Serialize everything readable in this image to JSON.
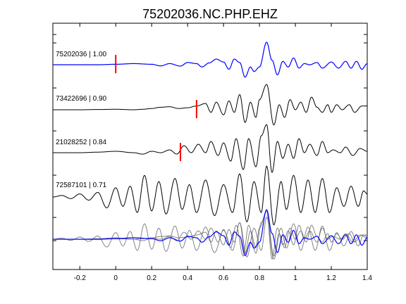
{
  "chart_data": {
    "type": "line",
    "title": "75202036.NC.PHP.EHZ",
    "xlim": [
      -0.35,
      1.4
    ],
    "x_ticks": [
      -0.2,
      0,
      0.2,
      0.4,
      0.6,
      0.8,
      1,
      1.2,
      1.4
    ],
    "x_tick_labels": [
      "-0.2",
      "0",
      "0.2",
      "0.4",
      "0.6",
      "0.8",
      "1",
      "1.2",
      "1.4"
    ],
    "colors": {
      "primary_trace": "#0000ff",
      "other_trace": "#000000",
      "pick": "#ff0000",
      "stack_other": "#777777"
    },
    "traces": [
      {
        "label": "75202036 | 1.00",
        "color": "#0000ff",
        "pick_x": 0.0,
        "waveform": [
          [
            -0.35,
            0
          ],
          [
            -0.2,
            0
          ],
          [
            -0.1,
            0
          ],
          [
            0,
            0.02
          ],
          [
            0.1,
            0.05
          ],
          [
            0.2,
            0.02
          ],
          [
            0.25,
            -0.05
          ],
          [
            0.3,
            0.05
          ],
          [
            0.36,
            -0.06
          ],
          [
            0.4,
            0.1
          ],
          [
            0.45,
            0.05
          ],
          [
            0.48,
            -0.1
          ],
          [
            0.52,
            0.08
          ],
          [
            0.56,
            0.25
          ],
          [
            0.6,
            0.12
          ],
          [
            0.63,
            -0.2
          ],
          [
            0.66,
            0.25
          ],
          [
            0.69,
            0.1
          ],
          [
            0.72,
            -0.55
          ],
          [
            0.75,
            -0.1
          ],
          [
            0.77,
            -0.3
          ],
          [
            0.8,
            -0.1
          ],
          [
            0.84,
            1.0
          ],
          [
            0.87,
            0.2
          ],
          [
            0.9,
            -0.45
          ],
          [
            0.93,
            0.15
          ],
          [
            0.96,
            -0.1
          ],
          [
            0.99,
            0.3
          ],
          [
            1.02,
            -0.15
          ],
          [
            1.05,
            0.05
          ],
          [
            1.08,
            0.0
          ],
          [
            1.12,
            0.1
          ],
          [
            1.15,
            -0.15
          ],
          [
            1.2,
            0.12
          ],
          [
            1.24,
            -0.15
          ],
          [
            1.28,
            0.15
          ],
          [
            1.31,
            -0.15
          ],
          [
            1.34,
            0.15
          ],
          [
            1.37,
            -0.2
          ],
          [
            1.4,
            0.05
          ]
        ]
      },
      {
        "label": "73422696 | 0.90",
        "color": "#000000",
        "pick_x": 0.45,
        "waveform": [
          [
            -0.35,
            0
          ],
          [
            -0.2,
            0
          ],
          [
            -0.1,
            0.01
          ],
          [
            0,
            0.02
          ],
          [
            0.1,
            0
          ],
          [
            0.15,
            0.02
          ],
          [
            0.2,
            0.05
          ],
          [
            0.25,
            0.1
          ],
          [
            0.3,
            0.12
          ],
          [
            0.35,
            0.05
          ],
          [
            0.4,
            0.08
          ],
          [
            0.45,
            0.15
          ],
          [
            0.5,
            0.25
          ],
          [
            0.53,
            -0.1
          ],
          [
            0.56,
            0.3
          ],
          [
            0.6,
            -0.2
          ],
          [
            0.63,
            0.35
          ],
          [
            0.66,
            -0.1
          ],
          [
            0.69,
            0.6
          ],
          [
            0.72,
            -0.5
          ],
          [
            0.75,
            0.3
          ],
          [
            0.78,
            -0.3
          ],
          [
            0.8,
            0.4
          ],
          [
            0.84,
            1.0
          ],
          [
            0.88,
            -0.6
          ],
          [
            0.91,
            0.2
          ],
          [
            0.94,
            -0.3
          ],
          [
            0.97,
            0.4
          ],
          [
            1.0,
            0.0
          ],
          [
            1.03,
            0.3
          ],
          [
            1.06,
            -0.1
          ],
          [
            1.09,
            0.5
          ],
          [
            1.12,
            0.1
          ],
          [
            1.15,
            -0.1
          ],
          [
            1.18,
            0.2
          ],
          [
            1.2,
            -0.1
          ],
          [
            1.23,
            0.2
          ],
          [
            1.26,
            0.0
          ],
          [
            1.3,
            0.2
          ],
          [
            1.33,
            -0.1
          ],
          [
            1.37,
            0.15
          ],
          [
            1.4,
            0.15
          ]
        ]
      },
      {
        "label": "21028252 | 0.84",
        "color": "#000000",
        "pick_x": 0.36,
        "waveform": [
          [
            -0.35,
            0
          ],
          [
            -0.2,
            0
          ],
          [
            -0.1,
            0.02
          ],
          [
            0,
            0.05
          ],
          [
            0.1,
            0
          ],
          [
            0.15,
            -0.05
          ],
          [
            0.2,
            0.05
          ],
          [
            0.25,
            0.0
          ],
          [
            0.3,
            0.1
          ],
          [
            0.34,
            -0.05
          ],
          [
            0.38,
            0.25
          ],
          [
            0.42,
            0.0
          ],
          [
            0.46,
            0.3
          ],
          [
            0.5,
            0.0
          ],
          [
            0.53,
            0.4
          ],
          [
            0.57,
            -0.1
          ],
          [
            0.6,
            0.35
          ],
          [
            0.64,
            -0.3
          ],
          [
            0.67,
            0.5
          ],
          [
            0.71,
            -0.6
          ],
          [
            0.74,
            0.5
          ],
          [
            0.78,
            -0.5
          ],
          [
            0.81,
            0.6
          ],
          [
            0.84,
            1.0
          ],
          [
            0.87,
            -0.7
          ],
          [
            0.9,
            0.4
          ],
          [
            0.93,
            -0.2
          ],
          [
            0.96,
            0.3
          ],
          [
            0.99,
            -0.2
          ],
          [
            1.02,
            0.5
          ],
          [
            1.05,
            0.0
          ],
          [
            1.08,
            0.3
          ],
          [
            1.12,
            -0.1
          ],
          [
            1.15,
            0.4
          ],
          [
            1.18,
            0.0
          ],
          [
            1.21,
            0.1
          ],
          [
            1.25,
            0.0
          ],
          [
            1.28,
            0.2
          ],
          [
            1.32,
            -0.1
          ],
          [
            1.36,
            0.15
          ],
          [
            1.4,
            0.05
          ]
        ]
      },
      {
        "label": "72587101 | 0.71",
        "color": "#000000",
        "pick_x": null,
        "waveform": [
          [
            -0.35,
            0
          ],
          [
            -0.3,
            0.05
          ],
          [
            -0.25,
            -0.05
          ],
          [
            -0.2,
            0.1
          ],
          [
            -0.15,
            -0.1
          ],
          [
            -0.1,
            0.15
          ],
          [
            -0.05,
            -0.35
          ],
          [
            0.0,
            0.3
          ],
          [
            0.04,
            -0.3
          ],
          [
            0.08,
            0.35
          ],
          [
            0.12,
            -0.5
          ],
          [
            0.16,
            0.7
          ],
          [
            0.2,
            -0.45
          ],
          [
            0.24,
            0.5
          ],
          [
            0.28,
            -0.55
          ],
          [
            0.33,
            0.6
          ],
          [
            0.37,
            -0.4
          ],
          [
            0.41,
            0.4
          ],
          [
            0.45,
            -0.5
          ],
          [
            0.5,
            0.55
          ],
          [
            0.55,
            -0.6
          ],
          [
            0.6,
            0.4
          ],
          [
            0.65,
            -0.5
          ],
          [
            0.69,
            0.75
          ],
          [
            0.73,
            -0.8
          ],
          [
            0.77,
            0.5
          ],
          [
            0.81,
            -0.5
          ],
          [
            0.84,
            1.0
          ],
          [
            0.88,
            -0.9
          ],
          [
            0.92,
            0.5
          ],
          [
            0.95,
            -0.4
          ],
          [
            0.99,
            0.7
          ],
          [
            1.03,
            -0.5
          ],
          [
            1.07,
            0.55
          ],
          [
            1.11,
            -0.5
          ],
          [
            1.15,
            0.6
          ],
          [
            1.19,
            -0.5
          ],
          [
            1.23,
            0.3
          ],
          [
            1.27,
            -0.3
          ],
          [
            1.31,
            0.35
          ],
          [
            1.35,
            -0.3
          ],
          [
            1.38,
            0.2
          ],
          [
            1.4,
            0.1
          ]
        ]
      }
    ],
    "stack_note": "bottom row overlays all traces"
  }
}
